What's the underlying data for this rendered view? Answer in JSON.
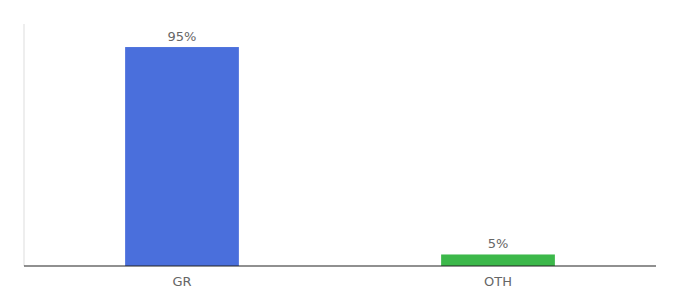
{
  "chart_data": {
    "type": "bar",
    "categories": [
      "GR",
      "OTH"
    ],
    "values": [
      95,
      5
    ],
    "value_labels": [
      "95%",
      "5%"
    ],
    "colors": [
      "#4a6fdc",
      "#3cb84a"
    ],
    "ylim": [
      0,
      105
    ],
    "grid": false,
    "data_labels": true,
    "tick_labels": "x"
  }
}
